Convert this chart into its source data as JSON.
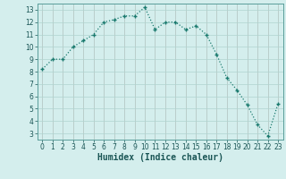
{
  "x": [
    0,
    1,
    2,
    3,
    4,
    5,
    6,
    7,
    8,
    9,
    10,
    11,
    12,
    13,
    14,
    15,
    16,
    17,
    18,
    19,
    20,
    21,
    22,
    23
  ],
  "y": [
    8.2,
    9.0,
    9.0,
    10.0,
    10.5,
    11.0,
    12.0,
    12.2,
    12.5,
    12.5,
    13.2,
    11.4,
    12.0,
    12.0,
    11.4,
    11.7,
    11.0,
    9.4,
    7.5,
    6.5,
    5.3,
    3.7,
    2.8,
    5.4
  ],
  "line_color": "#1a7a6e",
  "marker": "+",
  "markersize": 3.5,
  "markeredgewidth": 1.0,
  "linewidth": 0.9,
  "linestyle": "dotted",
  "background_color": "#d4eeed",
  "grid_color": "#afd4d0",
  "xlabel": "Humidex (Indice chaleur)",
  "xlabel_fontsize": 7,
  "tick_fontsize": 5.5,
  "ylim": [
    2.5,
    13.5
  ],
  "xlim": [
    -0.5,
    23.5
  ],
  "yticks": [
    3,
    4,
    5,
    6,
    7,
    8,
    9,
    10,
    11,
    12,
    13
  ],
  "xticks": [
    0,
    1,
    2,
    3,
    4,
    5,
    6,
    7,
    8,
    9,
    10,
    11,
    12,
    13,
    14,
    15,
    16,
    17,
    18,
    19,
    20,
    21,
    22,
    23
  ]
}
